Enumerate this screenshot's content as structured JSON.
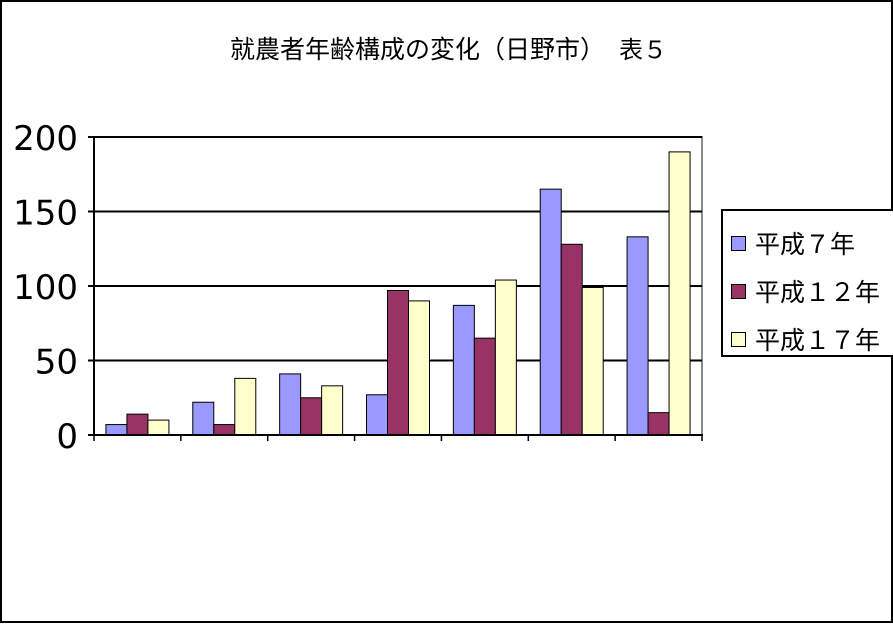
{
  "title": "就農者年齢構成の変化（日野市）",
  "title_suffix": "表５",
  "chart_data": {
    "type": "bar",
    "title": "就農者年齢構成の変化（日野市） 表５",
    "categories": [
      "",
      "",
      "",
      "",
      "",
      "",
      ""
    ],
    "ylim": [
      0,
      200
    ],
    "yticks": [
      0,
      50,
      100,
      150,
      200
    ],
    "grid": true,
    "legend_position": "right",
    "series": [
      {
        "name": "平成７年",
        "color": "#9999ff",
        "values": [
          7,
          22,
          41,
          27,
          87,
          165,
          133
        ]
      },
      {
        "name": "平成１２年",
        "color": "#993366",
        "values": [
          14,
          7,
          25,
          97,
          65,
          128,
          15
        ]
      },
      {
        "name": "平成１７年",
        "color": "#ffffcc",
        "values": [
          10,
          38,
          33,
          90,
          104,
          99,
          190
        ]
      }
    ]
  }
}
